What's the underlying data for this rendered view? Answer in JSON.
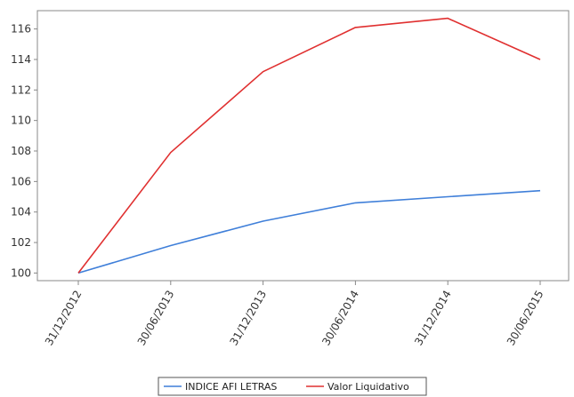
{
  "chart_data": {
    "type": "line",
    "title": "",
    "xlabel": "",
    "ylabel": "",
    "categories": [
      "31/12/2012",
      "30/06/2013",
      "31/12/2013",
      "30/06/2014",
      "31/12/2014",
      "30/06/2015"
    ],
    "ylim": [
      99.5,
      117.2
    ],
    "yticks": [
      100,
      102,
      104,
      106,
      108,
      110,
      112,
      114,
      116
    ],
    "grid": false,
    "legend_position": "bottom-center",
    "series": [
      {
        "name": "INDICE AFI LETRAS",
        "color": "#3f7fd9",
        "values": [
          100.0,
          101.8,
          103.4,
          104.6,
          105.0,
          105.4
        ]
      },
      {
        "name": "Valor Liquidativo",
        "color": "#e03030",
        "values": [
          100.0,
          107.9,
          113.2,
          116.1,
          116.7,
          114.0
        ]
      }
    ]
  }
}
